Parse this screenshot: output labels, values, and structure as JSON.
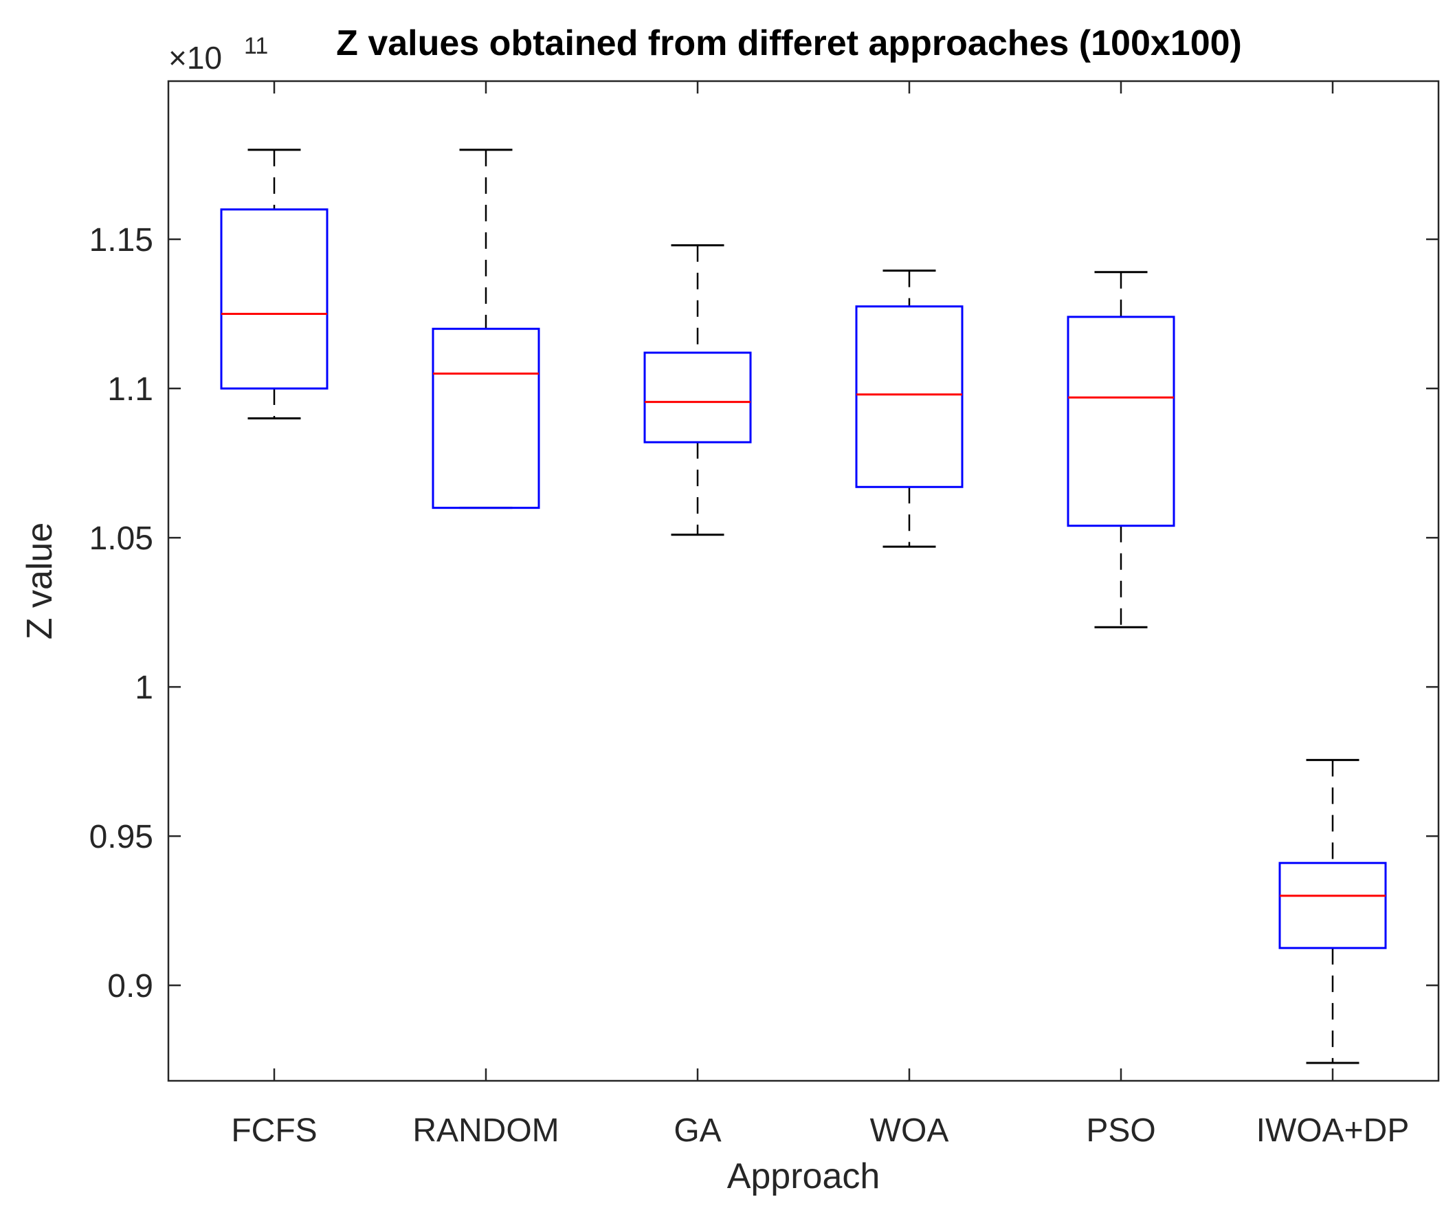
{
  "chart_data": {
    "type": "boxplot",
    "title": "Z values obtained from differet approaches (100x100)",
    "xlabel": "Approach",
    "ylabel": "Z value",
    "y_exponent_base": "×10",
    "y_exponent_power": "11",
    "ylim": [
      0.868,
      1.203
    ],
    "yticks": [
      0.9,
      0.95,
      1.0,
      1.05,
      1.1,
      1.15
    ],
    "ytick_labels": [
      "0.9",
      "0.95",
      "1",
      "1.05",
      "1.1",
      "1.15"
    ],
    "categories": [
      "FCFS",
      "RANDOM",
      "GA",
      "WOA",
      "PSO",
      "IWOA+DP"
    ],
    "boxes": [
      {
        "name": "FCFS",
        "whisker_low": 1.09,
        "q1": 1.1,
        "median": 1.125,
        "q3": 1.16,
        "whisker_high": 1.18
      },
      {
        "name": "RANDOM",
        "whisker_low": 1.06,
        "q1": 1.06,
        "median": 1.105,
        "q3": 1.12,
        "whisker_high": 1.18
      },
      {
        "name": "GA",
        "whisker_low": 1.051,
        "q1": 1.082,
        "median": 1.0955,
        "q3": 1.112,
        "whisker_high": 1.148
      },
      {
        "name": "WOA",
        "whisker_low": 1.047,
        "q1": 1.067,
        "median": 1.098,
        "q3": 1.1275,
        "whisker_high": 1.1395
      },
      {
        "name": "PSO",
        "whisker_low": 1.02,
        "q1": 1.054,
        "median": 1.097,
        "q3": 1.124,
        "whisker_high": 1.139
      },
      {
        "name": "IWOA+DP",
        "whisker_low": 0.874,
        "q1": 0.9125,
        "median": 0.93,
        "q3": 0.941,
        "whisker_high": 0.9755
      }
    ],
    "colors": {
      "box": "#0000ff",
      "median": "#ff0000",
      "whisker": "#000000",
      "axis": "#262626"
    },
    "grid": false
  }
}
